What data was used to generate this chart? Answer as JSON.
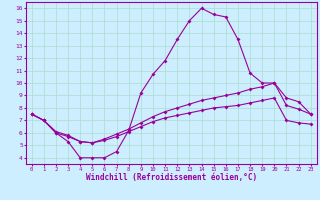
{
  "xlabel": "Windchill (Refroidissement éolien,°C)",
  "background_color": "#cceeff",
  "line_color": "#990099",
  "grid_color": "#aaddcc",
  "xlim": [
    -0.5,
    23.5
  ],
  "ylim": [
    3.5,
    16.5
  ],
  "xticks": [
    0,
    1,
    2,
    3,
    4,
    5,
    6,
    7,
    8,
    9,
    10,
    11,
    12,
    13,
    14,
    15,
    16,
    17,
    18,
    19,
    20,
    21,
    22,
    23
  ],
  "yticks": [
    4,
    5,
    6,
    7,
    8,
    9,
    10,
    11,
    12,
    13,
    14,
    15,
    16
  ],
  "line1_y": [
    7.5,
    7.0,
    6.0,
    5.3,
    4.0,
    4.0,
    4.0,
    4.5,
    6.2,
    9.2,
    10.7,
    11.8,
    13.5,
    15.0,
    16.0,
    15.5,
    15.3,
    13.5,
    10.8,
    10.0,
    10.0,
    8.8,
    8.5,
    7.5
  ],
  "line2_y": [
    7.5,
    7.0,
    6.1,
    5.8,
    5.3,
    5.2,
    5.5,
    5.9,
    6.3,
    6.8,
    7.3,
    7.7,
    8.0,
    8.3,
    8.6,
    8.8,
    9.0,
    9.2,
    9.5,
    9.7,
    10.0,
    8.2,
    7.9,
    7.5
  ],
  "line3_y": [
    7.5,
    7.0,
    6.0,
    5.7,
    5.3,
    5.2,
    5.4,
    5.7,
    6.1,
    6.5,
    6.9,
    7.2,
    7.4,
    7.6,
    7.8,
    8.0,
    8.1,
    8.2,
    8.4,
    8.6,
    8.8,
    7.0,
    6.8,
    6.7
  ]
}
